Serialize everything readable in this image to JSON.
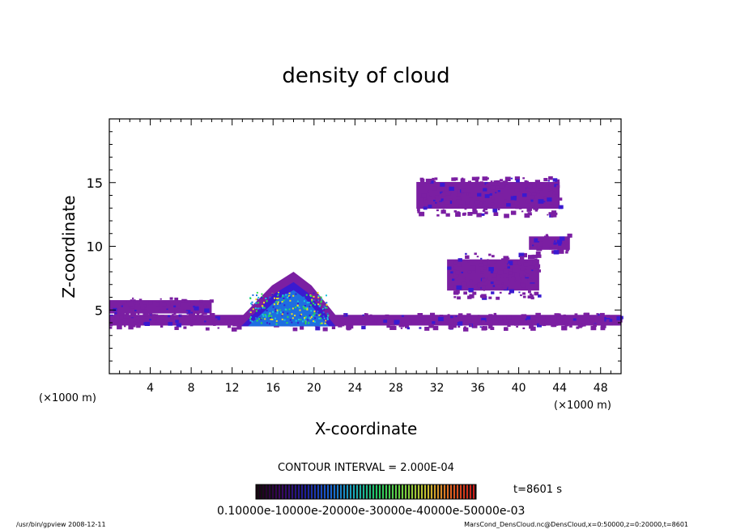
{
  "chart_data": {
    "type": "heatmap",
    "title": "density of cloud",
    "xlabel": "X-coordinate",
    "ylabel": "Z-coordinate",
    "x_unit_left": "(×1000 m)",
    "x_unit_right": "(×1000 m)",
    "xlim": [
      0,
      50
    ],
    "ylim": [
      0,
      20
    ],
    "x_ticks": [
      4,
      8,
      12,
      16,
      20,
      24,
      28,
      32,
      36,
      40,
      44,
      48
    ],
    "x_tick_labels": [
      "4",
      "8",
      "12",
      "16",
      "20",
      "24",
      "28",
      "32",
      "36",
      "40",
      "44",
      "48"
    ],
    "y_ticks": [
      5,
      10,
      15
    ],
    "y_tick_labels": [
      "5",
      "10",
      "15"
    ],
    "contour_interval_text": "CONTOUR INTERVAL = 2.000E-04",
    "time_text": "t=8601 s",
    "colorbar_labels_text": "0.10000e-10000e-20000e-30000e-40000e-50000e-03",
    "colorbar_range": [
      0.0001,
      0.0005
    ],
    "cloud_regions": [
      {
        "x": [
          0,
          50
        ],
        "z": [
          3.6,
          4.8
        ],
        "level": "low"
      },
      {
        "x": [
          0,
          10
        ],
        "z": [
          4.5,
          6.0
        ],
        "level": "low"
      },
      {
        "x": [
          12,
          23
        ],
        "z": [
          3.5,
          8.0
        ],
        "level": "high",
        "peak": {
          "x": 18,
          "z": 5.8
        }
      },
      {
        "x": [
          30,
          44
        ],
        "z": [
          12.5,
          15.5
        ],
        "level": "low"
      },
      {
        "x": [
          33,
          42
        ],
        "z": [
          6.0,
          9.5
        ],
        "level": "low"
      },
      {
        "x": [
          41,
          45
        ],
        "z": [
          9.5,
          11.0
        ],
        "level": "low"
      }
    ],
    "colors": {
      "outer": "#7b1fa2",
      "mid": "#3a1ad0",
      "inner": "#1e6ee0",
      "core_cyan": "#19c8d8",
      "core_green": "#2ee04a",
      "core_yellow": "#f0e020"
    }
  },
  "footer": {
    "left": "/usr/bin/gpview   2008-12-11",
    "right": "MarsCond_DensCloud.nc@DensCloud,x=0:50000,z=0:20000,t=8601"
  }
}
